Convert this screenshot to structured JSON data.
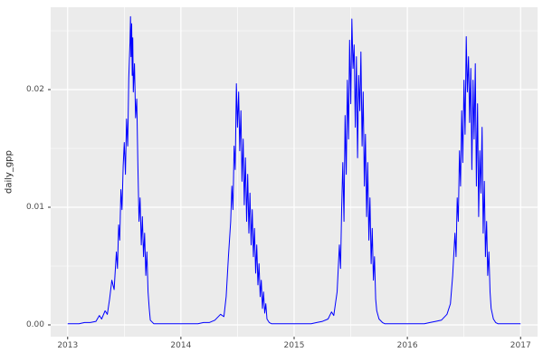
{
  "chart_data": {
    "type": "line",
    "title": "",
    "xlabel": "",
    "ylabel": "daily_gpp",
    "legend": "none",
    "panel_background": "#EBEBEB",
    "grid_color": "#FFFFFF",
    "line_color": "#0000FF",
    "tick_color": "#333333",
    "xlim": [
      2012.85,
      2017.15
    ],
    "ylim": [
      -0.001,
      0.027
    ],
    "x_ticks": [
      2013,
      2014,
      2015,
      2016,
      2017
    ],
    "x_tick_labels": [
      "2013",
      "2014",
      "2015",
      "2016",
      "2017"
    ],
    "x_minor_breaks": [
      2013.5,
      2014.5,
      2015.5,
      2016.5
    ],
    "y_ticks": [
      0.0,
      0.01,
      0.02
    ],
    "y_tick_labels": [
      "0.00",
      "0.01",
      "0.02"
    ],
    "y_minor_breaks": [
      0.005,
      0.015,
      0.025
    ],
    "series": [
      {
        "name": "daily_gpp",
        "points": [
          [
            2013.0,
            0.0001
          ],
          [
            2013.05,
            0.0001
          ],
          [
            2013.1,
            0.0001
          ],
          [
            2013.15,
            0.0002
          ],
          [
            2013.2,
            0.0002
          ],
          [
            2013.25,
            0.0003
          ],
          [
            2013.28,
            0.0008
          ],
          [
            2013.3,
            0.0005
          ],
          [
            2013.33,
            0.0012
          ],
          [
            2013.35,
            0.0009
          ],
          [
            2013.37,
            0.0022
          ],
          [
            2013.39,
            0.0038
          ],
          [
            2013.41,
            0.003
          ],
          [
            2013.43,
            0.0062
          ],
          [
            2013.44,
            0.0048
          ],
          [
            2013.45,
            0.0085
          ],
          [
            2013.46,
            0.0072
          ],
          [
            2013.47,
            0.0115
          ],
          [
            2013.48,
            0.0098
          ],
          [
            2013.49,
            0.0135
          ],
          [
            2013.5,
            0.0155
          ],
          [
            2013.51,
            0.0128
          ],
          [
            2013.52,
            0.0175
          ],
          [
            2013.53,
            0.0152
          ],
          [
            2013.54,
            0.021
          ],
          [
            2013.55,
            0.024
          ],
          [
            2013.555,
            0.0262
          ],
          [
            2013.56,
            0.0228
          ],
          [
            2013.565,
            0.0256
          ],
          [
            2013.57,
            0.0212
          ],
          [
            2013.575,
            0.0244
          ],
          [
            2013.58,
            0.0198
          ],
          [
            2013.59,
            0.0222
          ],
          [
            2013.6,
            0.0176
          ],
          [
            2013.61,
            0.0192
          ],
          [
            2013.62,
            0.0138
          ],
          [
            2013.63,
            0.0088
          ],
          [
            2013.64,
            0.0108
          ],
          [
            2013.65,
            0.0068
          ],
          [
            2013.66,
            0.0092
          ],
          [
            2013.67,
            0.0058
          ],
          [
            2013.68,
            0.0078
          ],
          [
            2013.69,
            0.0042
          ],
          [
            2013.7,
            0.0062
          ],
          [
            2013.71,
            0.0028
          ],
          [
            2013.72,
            0.0014
          ],
          [
            2013.73,
            0.0004
          ],
          [
            2013.76,
            0.0001
          ],
          [
            2013.8,
            0.0001
          ],
          [
            2013.85,
            0.0001
          ],
          [
            2013.9,
            0.0001
          ],
          [
            2013.95,
            0.0001
          ],
          [
            2014.0,
            0.0001
          ],
          [
            2014.05,
            0.0001
          ],
          [
            2014.1,
            0.0001
          ],
          [
            2014.15,
            0.0001
          ],
          [
            2014.2,
            0.0002
          ],
          [
            2014.25,
            0.0002
          ],
          [
            2014.3,
            0.0004
          ],
          [
            2014.35,
            0.0009
          ],
          [
            2014.38,
            0.0007
          ],
          [
            2014.4,
            0.0024
          ],
          [
            2014.42,
            0.0058
          ],
          [
            2014.44,
            0.0088
          ],
          [
            2014.45,
            0.0118
          ],
          [
            2014.46,
            0.0098
          ],
          [
            2014.47,
            0.0152
          ],
          [
            2014.48,
            0.0132
          ],
          [
            2014.49,
            0.0205
          ],
          [
            2014.5,
            0.0168
          ],
          [
            2014.51,
            0.0198
          ],
          [
            2014.52,
            0.0148
          ],
          [
            2014.53,
            0.0182
          ],
          [
            2014.54,
            0.0122
          ],
          [
            2014.55,
            0.0158
          ],
          [
            2014.56,
            0.0102
          ],
          [
            2014.57,
            0.0142
          ],
          [
            2014.58,
            0.0088
          ],
          [
            2014.59,
            0.0128
          ],
          [
            2014.6,
            0.0078
          ],
          [
            2014.61,
            0.0112
          ],
          [
            2014.62,
            0.0068
          ],
          [
            2014.63,
            0.0098
          ],
          [
            2014.64,
            0.0058
          ],
          [
            2014.65,
            0.0082
          ],
          [
            2014.66,
            0.0044
          ],
          [
            2014.67,
            0.0068
          ],
          [
            2014.68,
            0.0034
          ],
          [
            2014.69,
            0.0052
          ],
          [
            2014.7,
            0.0024
          ],
          [
            2014.71,
            0.0038
          ],
          [
            2014.72,
            0.0014
          ],
          [
            2014.73,
            0.0028
          ],
          [
            2014.74,
            0.001
          ],
          [
            2014.75,
            0.0018
          ],
          [
            2014.76,
            0.0005
          ],
          [
            2014.78,
            0.0002
          ],
          [
            2014.8,
            0.0001
          ],
          [
            2014.85,
            0.0001
          ],
          [
            2014.9,
            0.0001
          ],
          [
            2014.95,
            0.0001
          ],
          [
            2015.0,
            0.0001
          ],
          [
            2015.05,
            0.0001
          ],
          [
            2015.1,
            0.0001
          ],
          [
            2015.15,
            0.0001
          ],
          [
            2015.2,
            0.0002
          ],
          [
            2015.25,
            0.0003
          ],
          [
            2015.3,
            0.0005
          ],
          [
            2015.33,
            0.0011
          ],
          [
            2015.35,
            0.0008
          ],
          [
            2015.38,
            0.0028
          ],
          [
            2015.4,
            0.0068
          ],
          [
            2015.41,
            0.0048
          ],
          [
            2015.42,
            0.0098
          ],
          [
            2015.43,
            0.0138
          ],
          [
            2015.44,
            0.0088
          ],
          [
            2015.45,
            0.0178
          ],
          [
            2015.46,
            0.0128
          ],
          [
            2015.47,
            0.0208
          ],
          [
            2015.48,
            0.0158
          ],
          [
            2015.49,
            0.0242
          ],
          [
            2015.5,
            0.0188
          ],
          [
            2015.51,
            0.026
          ],
          [
            2015.52,
            0.0218
          ],
          [
            2015.53,
            0.0238
          ],
          [
            2015.54,
            0.0168
          ],
          [
            2015.55,
            0.0228
          ],
          [
            2015.56,
            0.0142
          ],
          [
            2015.57,
            0.0212
          ],
          [
            2015.58,
            0.0182
          ],
          [
            2015.59,
            0.0232
          ],
          [
            2015.6,
            0.0152
          ],
          [
            2015.61,
            0.0198
          ],
          [
            2015.62,
            0.0118
          ],
          [
            2015.63,
            0.0162
          ],
          [
            2015.64,
            0.0092
          ],
          [
            2015.65,
            0.0138
          ],
          [
            2015.66,
            0.0072
          ],
          [
            2015.67,
            0.0108
          ],
          [
            2015.68,
            0.0052
          ],
          [
            2015.69,
            0.0082
          ],
          [
            2015.7,
            0.0038
          ],
          [
            2015.71,
            0.0058
          ],
          [
            2015.72,
            0.0022
          ],
          [
            2015.73,
            0.0012
          ],
          [
            2015.75,
            0.0005
          ],
          [
            2015.78,
            0.0002
          ],
          [
            2015.8,
            0.0001
          ],
          [
            2015.85,
            0.0001
          ],
          [
            2015.9,
            0.0001
          ],
          [
            2015.95,
            0.0001
          ],
          [
            2016.0,
            0.0001
          ],
          [
            2016.05,
            0.0001
          ],
          [
            2016.1,
            0.0001
          ],
          [
            2016.15,
            0.0001
          ],
          [
            2016.2,
            0.0002
          ],
          [
            2016.25,
            0.0003
          ],
          [
            2016.3,
            0.0004
          ],
          [
            2016.35,
            0.0009
          ],
          [
            2016.38,
            0.0018
          ],
          [
            2016.4,
            0.0042
          ],
          [
            2016.42,
            0.0078
          ],
          [
            2016.43,
            0.0058
          ],
          [
            2016.44,
            0.0108
          ],
          [
            2016.45,
            0.0088
          ],
          [
            2016.46,
            0.0148
          ],
          [
            2016.47,
            0.0118
          ],
          [
            2016.48,
            0.0182
          ],
          [
            2016.49,
            0.0138
          ],
          [
            2016.5,
            0.0208
          ],
          [
            2016.51,
            0.0162
          ],
          [
            2016.52,
            0.0245
          ],
          [
            2016.53,
            0.0198
          ],
          [
            2016.54,
            0.0228
          ],
          [
            2016.55,
            0.0172
          ],
          [
            2016.56,
            0.0218
          ],
          [
            2016.57,
            0.0132
          ],
          [
            2016.58,
            0.0208
          ],
          [
            2016.59,
            0.0158
          ],
          [
            2016.6,
            0.0222
          ],
          [
            2016.61,
            0.0118
          ],
          [
            2016.62,
            0.0188
          ],
          [
            2016.63,
            0.0092
          ],
          [
            2016.64,
            0.0148
          ],
          [
            2016.65,
            0.0112
          ],
          [
            2016.66,
            0.0168
          ],
          [
            2016.67,
            0.0078
          ],
          [
            2016.68,
            0.0122
          ],
          [
            2016.69,
            0.0058
          ],
          [
            2016.7,
            0.0088
          ],
          [
            2016.71,
            0.0042
          ],
          [
            2016.72,
            0.0062
          ],
          [
            2016.73,
            0.0028
          ],
          [
            2016.74,
            0.0014
          ],
          [
            2016.76,
            0.0005
          ],
          [
            2016.78,
            0.0002
          ],
          [
            2016.8,
            0.0001
          ],
          [
            2016.85,
            0.0001
          ],
          [
            2016.9,
            0.0001
          ],
          [
            2016.95,
            0.0001
          ],
          [
            2017.0,
            0.0001
          ]
        ]
      }
    ]
  }
}
